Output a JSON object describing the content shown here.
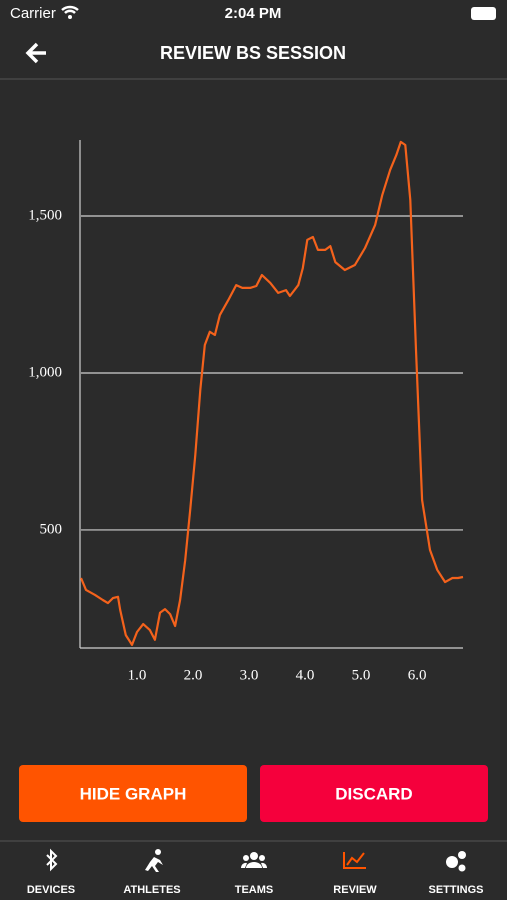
{
  "status": {
    "carrier": "Carrier",
    "time": "2:04 PM"
  },
  "header": {
    "title": "REVIEW BS SESSION"
  },
  "chart_data": {
    "type": "line",
    "color": "#f4621c",
    "grid": true,
    "x": [
      0,
      0.09,
      0.25,
      0.39,
      0.48,
      0.57,
      0.66,
      0.7,
      0.8,
      0.91,
      1.0,
      1.11,
      1.23,
      1.32,
      1.41,
      1.5,
      1.59,
      1.68,
      1.77,
      1.86,
      1.95,
      2.04,
      2.13,
      2.21,
      2.3,
      2.39,
      2.48,
      2.63,
      2.77,
      2.88,
      3.02,
      3.13,
      3.23,
      3.38,
      3.52,
      3.66,
      3.73,
      3.88,
      3.96,
      4.04,
      4.14,
      4.23,
      4.36,
      4.45,
      4.54,
      4.71,
      4.89,
      5.07,
      5.25,
      5.38,
      5.52,
      5.63,
      5.71,
      5.79,
      5.88,
      5.98,
      6.09,
      6.23,
      6.36,
      6.5,
      6.63,
      6.73,
      6.82
    ],
    "values": [
      347,
      309,
      293,
      277,
      267,
      283,
      287,
      245,
      165,
      134,
      175,
      200,
      181,
      150,
      236,
      248,
      232,
      194,
      277,
      404,
      564,
      739,
      946,
      1089,
      1131,
      1121,
      1185,
      1232,
      1280,
      1271,
      1271,
      1277,
      1312,
      1287,
      1255,
      1264,
      1245,
      1280,
      1334,
      1424,
      1433,
      1392,
      1392,
      1404,
      1353,
      1328,
      1344,
      1398,
      1471,
      1567,
      1647,
      1694,
      1736,
      1726,
      1551,
      1073,
      595,
      436,
      373,
      334,
      347,
      347,
      350
    ],
    "xlim": [
      0,
      6.82
    ],
    "ylim": [
      124,
      1742
    ],
    "xticks": [
      {
        "value": 1,
        "label": "1.0"
      },
      {
        "value": 2,
        "label": "2.0"
      },
      {
        "value": 3,
        "label": "3.0"
      },
      {
        "value": 4,
        "label": "4.0"
      },
      {
        "value": 5,
        "label": "5.0"
      },
      {
        "value": 6,
        "label": "6.0"
      }
    ],
    "yticks": [
      500,
      {
        "value": 1000,
        "label": "1,000"
      },
      {
        "value": 1500,
        "label": "1,500"
      }
    ]
  },
  "buttons": [
    "HIDE GRAPH",
    "DISCARD"
  ],
  "tabs": [
    "DEVICES",
    "ATHLETES",
    "TEAMS",
    "REVIEW",
    "SETTINGS"
  ]
}
